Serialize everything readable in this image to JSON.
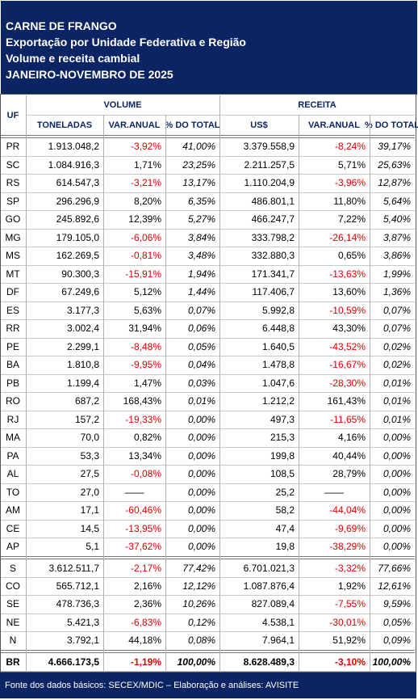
{
  "header": {
    "lines": [
      "CARNE DE FRANGO",
      "Exportação por Unidade Federativa e Região",
      "Volume e receita cambial",
      "JANEIRO-NOVEMBRO DE 2025"
    ]
  },
  "table": {
    "uf_header": "UF",
    "group_headers": [
      "VOLUME",
      "RECEITA"
    ],
    "column_headers": [
      "TONELADAS",
      "VAR.ANUAL",
      "% DO TOTAL",
      "US$",
      "VAR.ANUAL",
      "% DO TOTAL"
    ],
    "rows": [
      [
        "PR",
        "1.913.048,2",
        "-3,92%",
        "41,00%",
        "3.379.558,9",
        "-8,24%",
        "39,17%"
      ],
      [
        "SC",
        "1.084.916,3",
        "1,71%",
        "23,25%",
        "2.211.257,5",
        "5,71%",
        "25,63%"
      ],
      [
        "RS",
        "614.547,3",
        "-3,21%",
        "13,17%",
        "1.110.204,9",
        "-3,96%",
        "12,87%"
      ],
      [
        "SP",
        "296.296,9",
        "8,20%",
        "6,35%",
        "486.801,1",
        "11,80%",
        "5,64%"
      ],
      [
        "GO",
        "245.892,6",
        "12,39%",
        "5,27%",
        "466.247,7",
        "7,22%",
        "5,40%"
      ],
      [
        "MG",
        "179.105,0",
        "-6,06%",
        "3,84%",
        "333.798,2",
        "-26,14%",
        "3,87%"
      ],
      [
        "MS",
        "162.269,5",
        "-0,81%",
        "3,48%",
        "332.880,3",
        "0,65%",
        "3,86%"
      ],
      [
        "MT",
        "90.300,3",
        "-15,91%",
        "1,94%",
        "171.341,7",
        "-13,63%",
        "1,99%"
      ],
      [
        "DF",
        "67.249,6",
        "5,12%",
        "1,44%",
        "117.406,7",
        "13,60%",
        "1,36%"
      ],
      [
        "ES",
        "3.177,3",
        "5,63%",
        "0,07%",
        "5.992,8",
        "-10,59%",
        "0,07%"
      ],
      [
        "RR",
        "3.002,4",
        "31,94%",
        "0,06%",
        "6.448,8",
        "43,30%",
        "0,07%"
      ],
      [
        "PE",
        "2.299,1",
        "-8,48%",
        "0,05%",
        "1.640,5",
        "-43,52%",
        "0,02%"
      ],
      [
        "BA",
        "1.810,8",
        "-9,95%",
        "0,04%",
        "1.478,8",
        "-16,67%",
        "0,02%"
      ],
      [
        "PB",
        "1.199,4",
        "1,47%",
        "0,03%",
        "1.047,6",
        "-28,30%",
        "0,01%"
      ],
      [
        "RO",
        "687,2",
        "168,43%",
        "0,01%",
        "1.212,2",
        "161,43%",
        "0,01%"
      ],
      [
        "RJ",
        "157,2",
        "-19,33%",
        "0,00%",
        "497,3",
        "-11,65%",
        "0,01%"
      ],
      [
        "MA",
        "70,0",
        "0,82%",
        "0,00%",
        "215,3",
        "4,16%",
        "0,00%"
      ],
      [
        "PA",
        "53,3",
        "13,34%",
        "0,00%",
        "199,8",
        "40,44%",
        "0,00%"
      ],
      [
        "AL",
        "27,5",
        "-0,08%",
        "0,00%",
        "108,5",
        "28,79%",
        "0,00%"
      ],
      [
        "TO",
        "27,0",
        "——",
        "0,00%",
        "25,2",
        "——",
        "0,00%"
      ],
      [
        "AM",
        "17,1",
        "-60,46%",
        "0,00%",
        "58,2",
        "-44,04%",
        "0,00%"
      ],
      [
        "CE",
        "14,5",
        "-13,95%",
        "0,00%",
        "47,4",
        "-9,69%",
        "0,00%"
      ],
      [
        "AP",
        "5,1",
        "-37,62%",
        "0,00%",
        "19,8",
        "-38,29%",
        "0,00%"
      ]
    ],
    "region_rows": [
      [
        "S",
        "3.612.511,7",
        "-2,17%",
        "77,42%",
        "6.701.021,3",
        "-3,32%",
        "77,66%"
      ],
      [
        "CO",
        "565.712,1",
        "2,16%",
        "12,12%",
        "1.087.876,4",
        "1,92%",
        "12,61%"
      ],
      [
        "SE",
        "478.736,3",
        "2,36%",
        "10,26%",
        "827.089,4",
        "-7,55%",
        "9,59%"
      ],
      [
        "NE",
        "5.421,3",
        "-6,83%",
        "0,12%",
        "4.538,1",
        "-30,01%",
        "0,05%"
      ],
      [
        "N",
        "3.792,1",
        "44,18%",
        "0,08%",
        "7.964,1",
        "51,92%",
        "0,09%"
      ]
    ],
    "total_row": [
      "BR",
      "4.666.173,5",
      "-1,19%",
      "100,00%",
      "8.628.489,3",
      "-3,10%",
      "100,00%"
    ]
  },
  "footer": {
    "text": "Fonte dos dados básicos: SECEX/MDIC – Elaboração e análises: AVISITE"
  }
}
